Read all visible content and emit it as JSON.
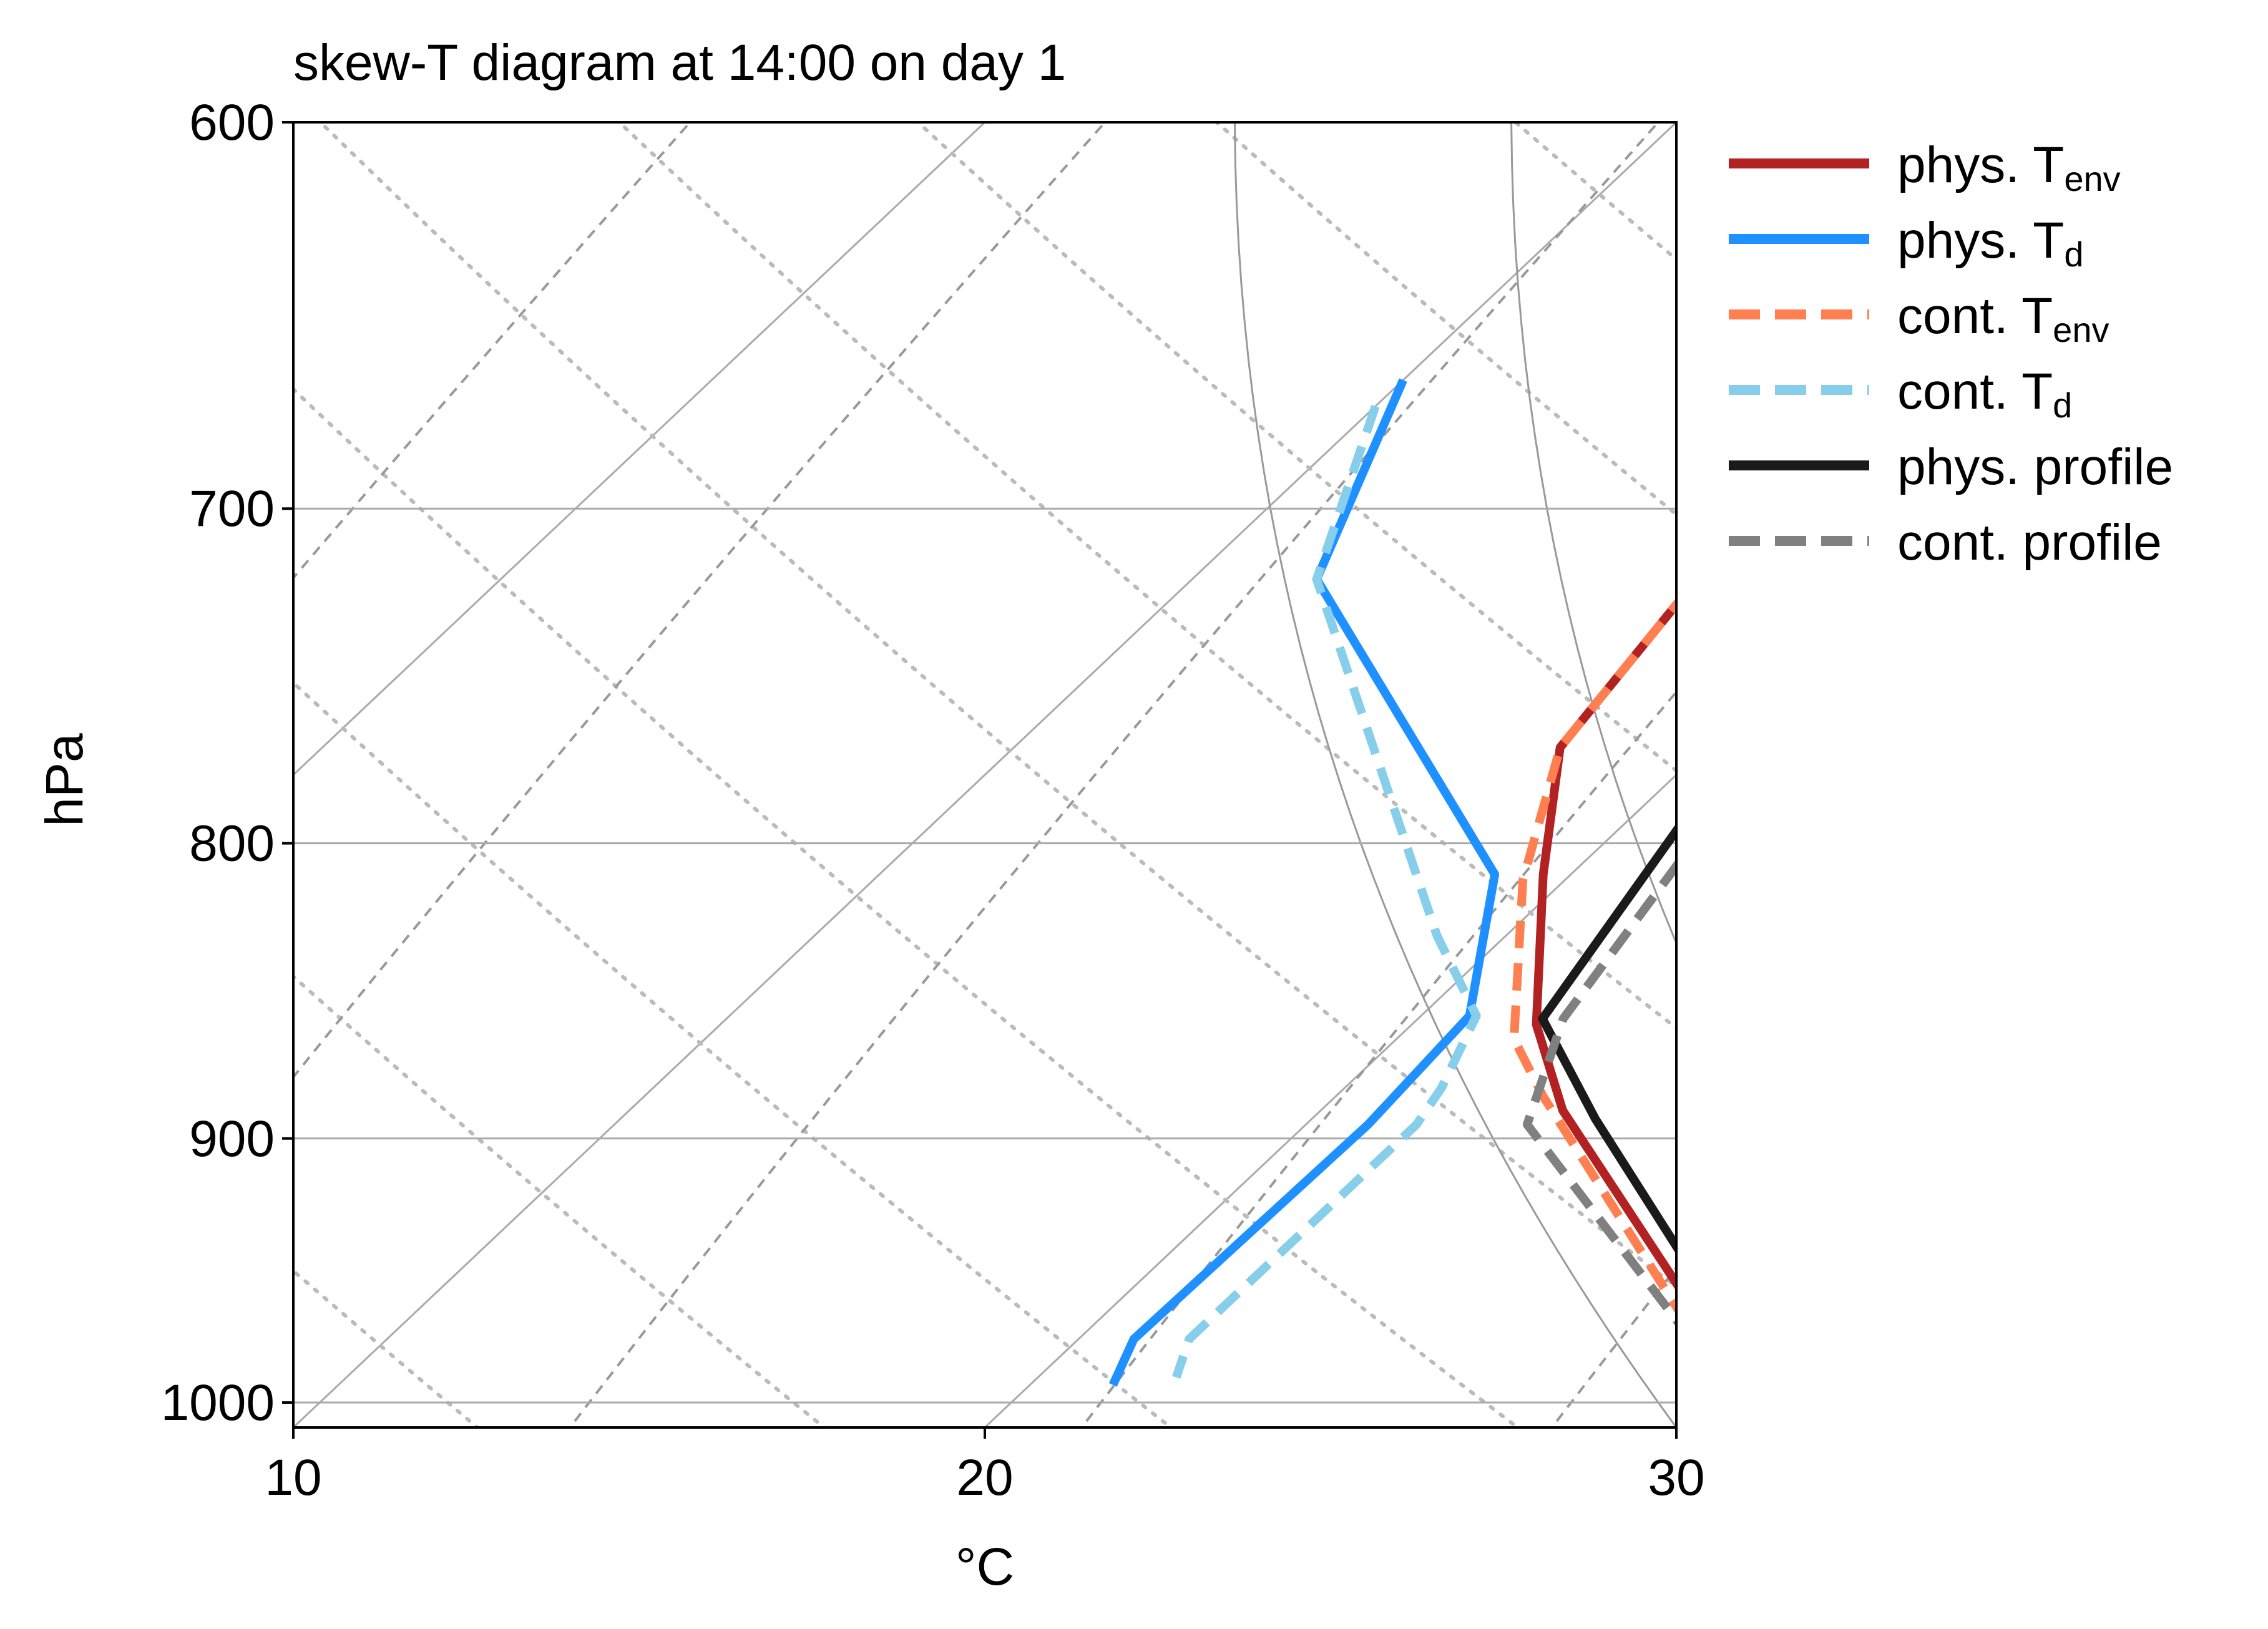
{
  "chart_data": {
    "type": "line",
    "title": "skew-T diagram at 14:00 on day 1",
    "xlabel": "°C",
    "ylabel": "hPa",
    "xlim": [
      10,
      30
    ],
    "ylim": [
      1010,
      600
    ],
    "y_scale": "log",
    "skewed_x": true,
    "x_ticks": [
      "10",
      "20",
      "30"
    ],
    "y_ticks": [
      "600",
      "700",
      "800",
      "900",
      "1000"
    ],
    "grid": true,
    "legend_position": "outside-right",
    "series": [
      {
        "name": "phys. T",
        "subscript": "env",
        "color": "#b22222",
        "style": "solid",
        "points": [
          [
            13.0,
            600
          ],
          [
            14.9,
            660
          ],
          [
            17.3,
            720
          ],
          [
            17.9,
            770
          ],
          [
            19.6,
            810
          ],
          [
            21.8,
            860
          ],
          [
            23.5,
            890
          ],
          [
            30,
            988
          ]
        ]
      },
      {
        "name": "phys. T",
        "subscript": "d",
        "color": "#1e90ff",
        "style": "solid",
        "points": [
          [
            10,
            665
          ],
          [
            11.8,
            720
          ],
          [
            18.9,
            810
          ],
          [
            20.7,
            857
          ],
          [
            20.9,
            895
          ],
          [
            20.8,
            975
          ],
          [
            21.2,
            993
          ]
        ]
      },
      {
        "name": "cont. T",
        "subscript": "env",
        "color": "#ff7f50",
        "style": "dashed",
        "points": [
          [
            13.0,
            600
          ],
          [
            14.9,
            660
          ],
          [
            17.3,
            720
          ],
          [
            17.9,
            770
          ],
          [
            19.4,
            812
          ],
          [
            21.7,
            865
          ],
          [
            23.0,
            885
          ],
          [
            30,
            992
          ]
        ]
      },
      {
        "name": "cont. T",
        "subscript": "d",
        "color": "#87ceeb",
        "style": "dashed",
        "points": [
          [
            10,
            672
          ],
          [
            11.8,
            720
          ],
          [
            19.0,
            830
          ],
          [
            20.8,
            857
          ],
          [
            21.4,
            882
          ],
          [
            21.6,
            895
          ],
          [
            21.6,
            975
          ],
          [
            22.0,
            990
          ]
        ]
      },
      {
        "name": "phys. profile",
        "color": "#1a1a1a",
        "style": "solid",
        "points": [
          [
            16.6,
            600
          ],
          [
            18.2,
            660
          ],
          [
            19.5,
            720
          ],
          [
            20.6,
            780
          ],
          [
            21.8,
            858
          ],
          [
            24.1,
            893
          ],
          [
            30,
            983
          ]
        ]
      },
      {
        "name": "cont. profile",
        "color": "#808080",
        "style": "dashed",
        "points": [
          [
            17.2,
            600
          ],
          [
            18.6,
            660
          ],
          [
            19.9,
            720
          ],
          [
            21.0,
            780
          ],
          [
            22.1,
            858
          ],
          [
            23.2,
            895
          ],
          [
            30,
            992
          ]
        ]
      }
    ],
    "reference_lines": {
      "dry_adiabats_color": "#999999",
      "moist_adiabats_color": "#bbbbbb",
      "mixing_ratio_color": "#999999",
      "isotherm_color": "#aaaaaa",
      "isobar_color": "#aaaaaa"
    }
  }
}
